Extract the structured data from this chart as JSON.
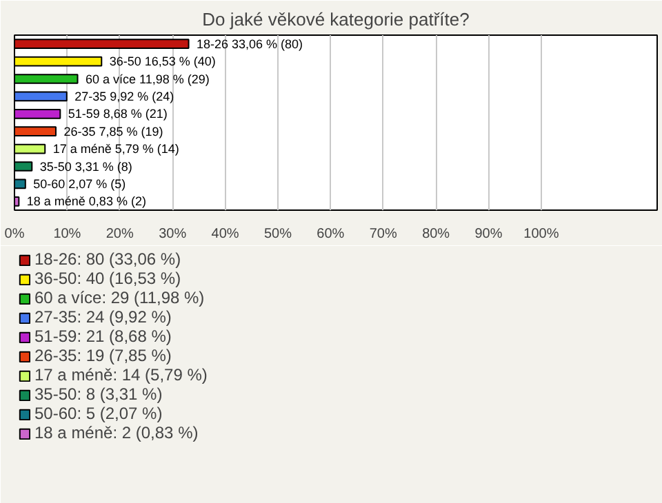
{
  "chart_data": {
    "type": "bar",
    "orientation": "horizontal",
    "title": "Do jaké věkové kategorie patříte?",
    "categories": [
      null,
      null,
      null,
      null,
      null,
      null,
      null,
      null,
      null,
      null
    ],
    "series": [
      {
        "name": "18-26: 80 (33,06 %)",
        "color": "#c0150f",
        "values": [
          33.06,
          null,
          null,
          null,
          null,
          null,
          null,
          null,
          null,
          null
        ],
        "value_labels": [
          "18-26 33,06 % (80)",
          null,
          null,
          null,
          null,
          null,
          null,
          null,
          null,
          null
        ]
      },
      {
        "name": "36-50: 40 (16,53 %)",
        "color": "#ffee00",
        "values": [
          null,
          16.53,
          null,
          null,
          null,
          null,
          null,
          null,
          null,
          null
        ],
        "value_labels": [
          null,
          "36-50 16,53 % (40)",
          null,
          null,
          null,
          null,
          null,
          null,
          null,
          null
        ]
      },
      {
        "name": "60 a více: 29 (11,98 %)",
        "color": "#22bb22",
        "values": [
          null,
          null,
          11.98,
          null,
          null,
          null,
          null,
          null,
          null,
          null
        ],
        "value_labels": [
          null,
          null,
          "60 a více 11,98 % (29)",
          null,
          null,
          null,
          null,
          null,
          null,
          null
        ]
      },
      {
        "name": "27-35: 24 (9,92 %)",
        "color": "#4477ee",
        "values": [
          null,
          null,
          null,
          9.92,
          null,
          null,
          null,
          null,
          null,
          null
        ],
        "value_labels": [
          null,
          null,
          null,
          "27-35 9,92 % (24)",
          null,
          null,
          null,
          null,
          null,
          null
        ]
      },
      {
        "name": "51-59: 21 (8,68 %)",
        "color": "#bb22cc",
        "values": [
          null,
          null,
          null,
          null,
          8.68,
          null,
          null,
          null,
          null,
          null
        ],
        "value_labels": [
          null,
          null,
          null,
          null,
          "51-59 8,68 % (21)",
          null,
          null,
          null,
          null,
          null
        ]
      },
      {
        "name": "26-35: 19 (7,85 %)",
        "color": "#e84010",
        "values": [
          null,
          null,
          null,
          null,
          null,
          7.85,
          null,
          null,
          null,
          null
        ],
        "value_labels": [
          null,
          null,
          null,
          null,
          null,
          "26-35 7,85 % (19)",
          null,
          null,
          null,
          null
        ]
      },
      {
        "name": "17 a méně: 14 (5,79 %)",
        "color": "#ccff66",
        "values": [
          null,
          null,
          null,
          null,
          null,
          null,
          5.79,
          null,
          null,
          null
        ],
        "value_labels": [
          null,
          null,
          null,
          null,
          null,
          null,
          "17 a méně 5,79 % (14)",
          null,
          null,
          null
        ]
      },
      {
        "name": "35-50: 8 (3,31 %)",
        "color": "#118855",
        "values": [
          null,
          null,
          null,
          null,
          null,
          null,
          null,
          3.31,
          null,
          null
        ],
        "value_labels": [
          null,
          null,
          null,
          null,
          null,
          null,
          null,
          "35-50 3,31 % (8)",
          null,
          null
        ]
      },
      {
        "name": "50-60: 5 (2,07 %)",
        "color": "#117788",
        "values": [
          null,
          null,
          null,
          null,
          null,
          null,
          null,
          null,
          2.07,
          null
        ],
        "value_labels": [
          null,
          null,
          null,
          null,
          null,
          null,
          null,
          null,
          "50-60 2,07 % (5)",
          null
        ]
      },
      {
        "name": "18 a méně: 2 (0,83 %)",
        "color": "#cc66cc",
        "values": [
          null,
          null,
          null,
          null,
          null,
          null,
          null,
          null,
          null,
          0.83
        ],
        "value_labels": [
          null,
          null,
          null,
          null,
          null,
          null,
          null,
          null,
          null,
          "18 a méně 0,83 % (2)"
        ]
      }
    ],
    "xlim": [
      0,
      122
    ],
    "xticks": [
      {
        "value": 0,
        "label": "0%"
      },
      {
        "value": 10,
        "label": "10%"
      },
      {
        "value": 20,
        "label": "20%"
      },
      {
        "value": 30,
        "label": "30%"
      },
      {
        "value": 40,
        "label": "40%"
      },
      {
        "value": 50,
        "label": "50%"
      },
      {
        "value": 60,
        "label": "60%"
      },
      {
        "value": 70,
        "label": "70%"
      },
      {
        "value": 80,
        "label": "80%"
      },
      {
        "value": 90,
        "label": "90%"
      },
      {
        "value": 100,
        "label": "100%"
      }
    ],
    "grid": "x",
    "tick_labels": "x",
    "legend": "bottom"
  }
}
